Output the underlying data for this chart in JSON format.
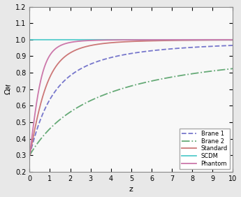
{
  "title": "",
  "xlabel": "z",
  "ylabel": "\\Omega_M",
  "xlim": [
    0,
    10
  ],
  "ylim": [
    0.2,
    1.2
  ],
  "yticks": [
    0.2,
    0.3,
    0.4,
    0.5,
    0.6,
    0.7,
    0.8,
    0.9,
    1.0,
    1.1,
    1.2
  ],
  "xticks": [
    0,
    1,
    2,
    3,
    4,
    5,
    6,
    7,
    8,
    9,
    10
  ],
  "legend_labels": [
    "Brane 1",
    "Brane 2",
    "Standard",
    "SCDM",
    "Phantom"
  ],
  "line_colors": [
    "#7777cc",
    "#66aa77",
    "#cc7777",
    "#55cccc",
    "#cc77aa"
  ],
  "omega_m0": 0.3,
  "figure_facecolor": "#e8e8e8",
  "axes_facecolor": "#f8f8f8"
}
